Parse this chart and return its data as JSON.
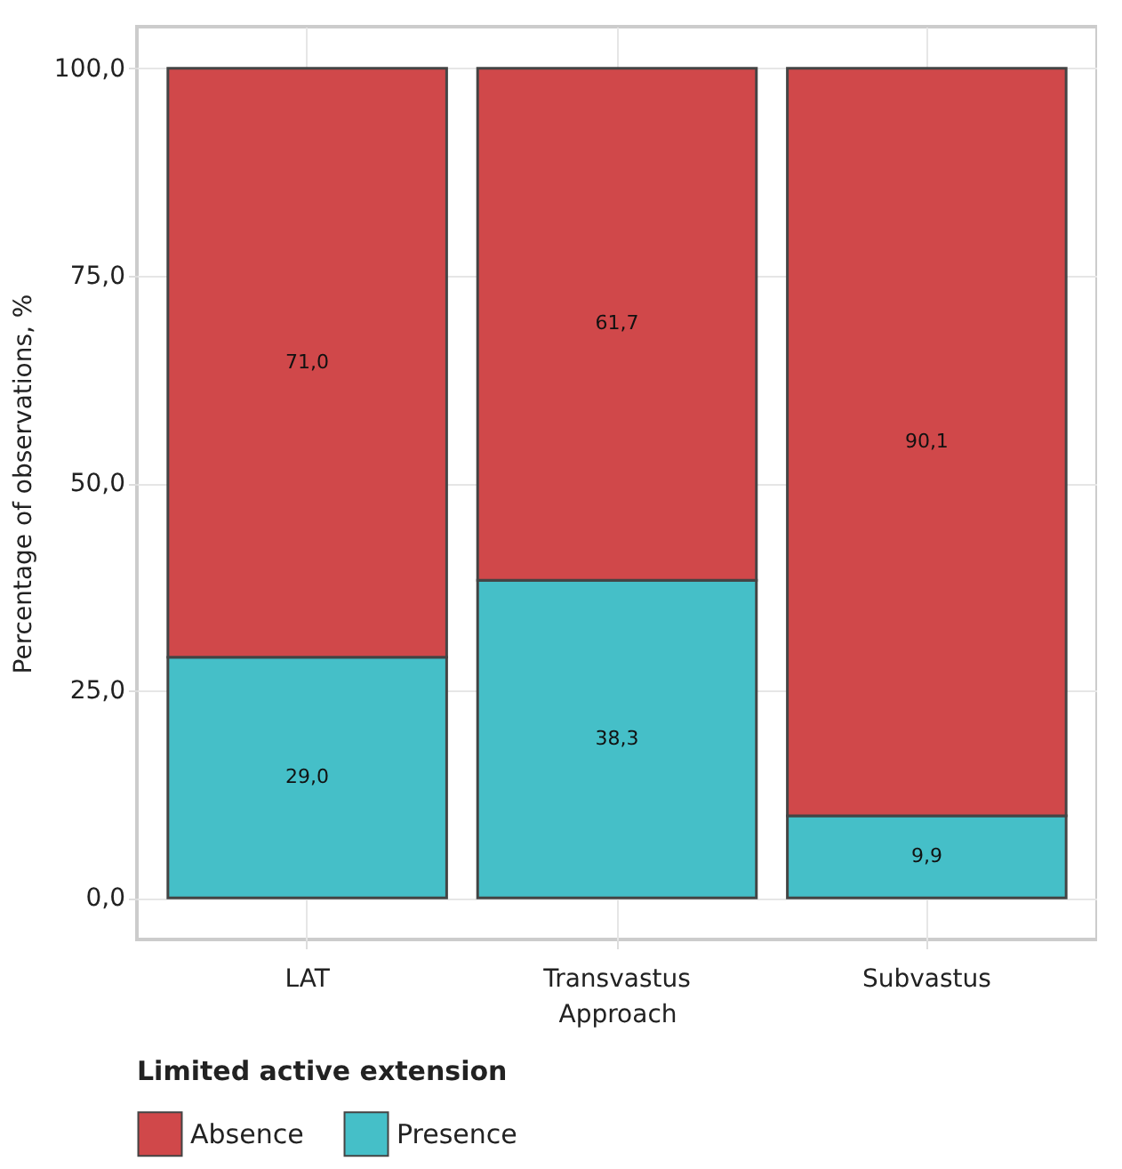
{
  "chart_data": {
    "type": "bar",
    "stacked": true,
    "xlabel": "Approach",
    "ylabel": "Percentage of observations, %",
    "legend_title": "Limited active extension",
    "categories": [
      "LAT",
      "Transvastus",
      "Subvastus"
    ],
    "series": [
      {
        "name": "Presence",
        "color": "#45bfc8",
        "values": [
          29.0,
          38.3,
          9.9
        ],
        "value_labels": [
          "29,0",
          "38,3",
          "9,9"
        ]
      },
      {
        "name": "Absence",
        "color": "#d0484a",
        "values": [
          71.0,
          61.7,
          90.1
        ],
        "value_labels": [
          "71,0",
          "61,7",
          "90,1"
        ]
      }
    ],
    "ylim": [
      -5,
      105
    ],
    "yticks": [
      {
        "value": 0,
        "label": "0,0"
      },
      {
        "value": 25,
        "label": "25,0"
      },
      {
        "value": 50,
        "label": "50,0"
      },
      {
        "value": 75,
        "label": "75,0"
      },
      {
        "value": 100,
        "label": "100,0"
      }
    ],
    "grid": true,
    "legend": "bottom"
  }
}
